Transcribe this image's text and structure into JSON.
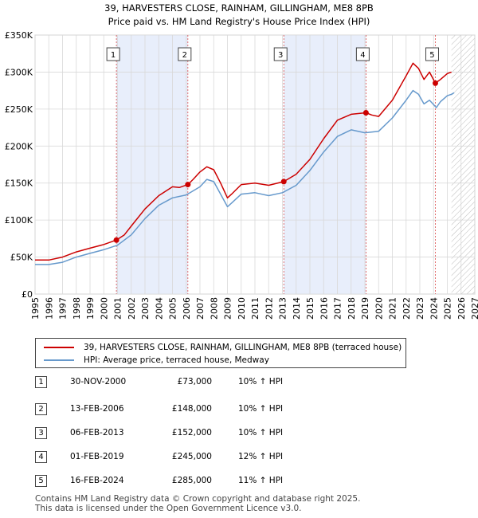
{
  "chart_data": {
    "type": "line",
    "title": "39, HARVESTERS CLOSE, RAINHAM, GILLINGHAM, ME8 8PB",
    "subtitle": "Price paid vs. HM Land Registry's House Price Index (HPI)",
    "xlabel": "",
    "ylabel": "",
    "xlim": [
      1995,
      2027
    ],
    "ylim": [
      0,
      350000
    ],
    "x_ticks": [
      1995,
      1996,
      1997,
      1998,
      1999,
      2000,
      2001,
      2002,
      2003,
      2004,
      2005,
      2006,
      2007,
      2008,
      2009,
      2010,
      2011,
      2012,
      2013,
      2014,
      2015,
      2016,
      2017,
      2018,
      2019,
      2020,
      2021,
      2022,
      2023,
      2024,
      2025,
      2026,
      2027
    ],
    "y_ticks": [
      {
        "value": 0,
        "label": "£0"
      },
      {
        "value": 50000,
        "label": "£50K"
      },
      {
        "value": 100000,
        "label": "£100K"
      },
      {
        "value": 150000,
        "label": "£150K"
      },
      {
        "value": 200000,
        "label": "£200K"
      },
      {
        "value": 250000,
        "label": "£250K"
      },
      {
        "value": 300000,
        "label": "£300K"
      },
      {
        "value": 350000,
        "label": "£350K"
      }
    ],
    "grid": true,
    "forecast_start": 2025.3,
    "series": [
      {
        "name": "39, HARVESTERS CLOSE, RAINHAM, GILLINGHAM, ME8 8PB (terraced house)",
        "color": "#cc0000",
        "x": [
          1995,
          1996,
          1997,
          1998,
          1999,
          2000,
          2000.92,
          2001.5,
          2002,
          2003,
          2004,
          2005,
          2005.5,
          2006.12,
          2006.5,
          2007,
          2007.5,
          2008,
          2008.5,
          2009,
          2009.3,
          2010,
          2011,
          2012,
          2013.1,
          2014,
          2015,
          2016,
          2017,
          2018,
          2019.08,
          2019.5,
          2020,
          2021,
          2022,
          2022.5,
          2022.9,
          2023.3,
          2023.7,
          2024.13,
          2024.5,
          2025,
          2025.3
        ],
        "y": [
          46000,
          46000,
          50000,
          57000,
          62000,
          67000,
          73000,
          80000,
          92000,
          115000,
          133000,
          145000,
          144000,
          148000,
          155000,
          165000,
          172000,
          168000,
          150000,
          130000,
          135000,
          148000,
          150000,
          147000,
          152000,
          162000,
          182000,
          210000,
          235000,
          243000,
          245000,
          242000,
          240000,
          262000,
          295000,
          312000,
          305000,
          290000,
          300000,
          285000,
          290000,
          298000,
          300000
        ]
      },
      {
        "name": "HPI: Average price, terraced house, Medway",
        "color": "#6699cc",
        "x": [
          1995,
          1996,
          1997,
          1998,
          1999,
          2000,
          2001,
          2002,
          2003,
          2004,
          2005,
          2006,
          2007,
          2007.5,
          2008,
          2008.5,
          2009,
          2009.3,
          2010,
          2011,
          2012,
          2013,
          2014,
          2015,
          2016,
          2017,
          2018,
          2019,
          2020,
          2021,
          2022,
          2022.5,
          2022.9,
          2023.3,
          2023.7,
          2024.2,
          2024.5,
          2025,
          2025.3,
          2025.5
        ],
        "y": [
          40000,
          40000,
          43000,
          50000,
          55000,
          60000,
          66000,
          80000,
          102000,
          120000,
          130000,
          134000,
          145000,
          155000,
          152000,
          135000,
          118000,
          123000,
          135000,
          137000,
          133000,
          137000,
          147000,
          167000,
          192000,
          213000,
          222000,
          218000,
          220000,
          238000,
          262000,
          275000,
          270000,
          257000,
          262000,
          252000,
          260000,
          268000,
          270000,
          272000
        ]
      }
    ],
    "markers": [
      {
        "id": "1",
        "x": 2000.92,
        "y": 73000
      },
      {
        "id": "2",
        "x": 2006.12,
        "y": 148000
      },
      {
        "id": "3",
        "x": 2013.1,
        "y": 152000
      },
      {
        "id": "4",
        "x": 2019.08,
        "y": 245000
      },
      {
        "id": "5",
        "x": 2024.13,
        "y": 285000
      }
    ]
  },
  "legend": {
    "property_label": "39, HARVESTERS CLOSE, RAINHAM, GILLINGHAM, ME8 8PB (terraced house)",
    "hpi_label": "HPI: Average price, terraced house, Medway",
    "property_color": "#cc0000",
    "hpi_color": "#6699cc"
  },
  "sales": [
    {
      "num": "1",
      "date": "30-NOV-2000",
      "price": "£73,000",
      "hpi": "10% ↑ HPI"
    },
    {
      "num": "2",
      "date": "13-FEB-2006",
      "price": "£148,000",
      "hpi": "10% ↑ HPI"
    },
    {
      "num": "3",
      "date": "06-FEB-2013",
      "price": "£152,000",
      "hpi": "10% ↑ HPI"
    },
    {
      "num": "4",
      "date": "01-FEB-2019",
      "price": "£245,000",
      "hpi": "12% ↑ HPI"
    },
    {
      "num": "5",
      "date": "16-FEB-2024",
      "price": "£285,000",
      "hpi": "11% ↑ HPI"
    }
  ],
  "footer": {
    "line1": "Contains HM Land Registry data © Crown copyright and database right 2025.",
    "line2": "This data is licensed under the Open Government Licence v3.0."
  }
}
